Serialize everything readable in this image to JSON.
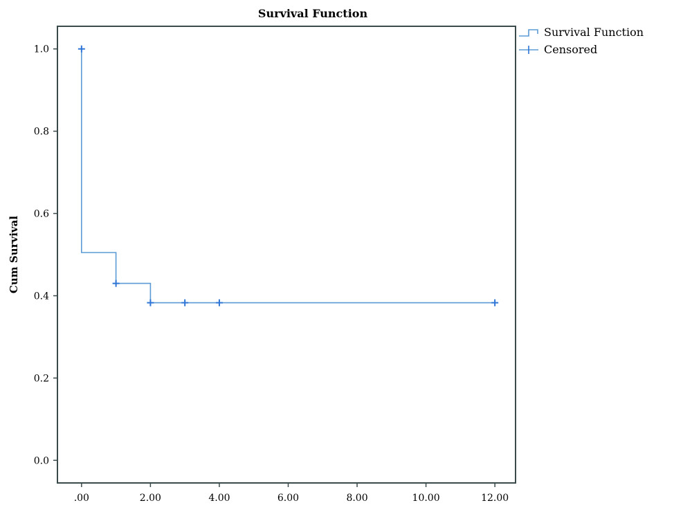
{
  "chart_data": {
    "type": "line",
    "title": "Survival Function",
    "xlabel": "",
    "ylabel": "Cum Survival",
    "xlim": [
      -0.7,
      12.6
    ],
    "ylim": [
      -0.055,
      1.055
    ],
    "x_ticks": [
      {
        "value": 0,
        "label": ".00"
      },
      {
        "value": 2,
        "label": "2.00"
      },
      {
        "value": 4,
        "label": "4.00"
      },
      {
        "value": 6,
        "label": "6.00"
      },
      {
        "value": 8,
        "label": "8.00"
      },
      {
        "value": 10,
        "label": "10.00"
      },
      {
        "value": 12,
        "label": "12.00"
      }
    ],
    "y_ticks": [
      {
        "value": 0.0,
        "label": "0.0"
      },
      {
        "value": 0.2,
        "label": "0.2"
      },
      {
        "value": 0.4,
        "label": "0.4"
      },
      {
        "value": 0.6,
        "label": "0.6"
      },
      {
        "value": 0.8,
        "label": "0.8"
      },
      {
        "value": 1.0,
        "label": "1.0"
      }
    ],
    "grid": false,
    "legend_position": "top-right outside",
    "series": [
      {
        "name": "Survival Function",
        "kind": "step",
        "color": "#5b9bd5",
        "points": [
          {
            "x": 0,
            "y": 1.0
          },
          {
            "x": 0,
            "y": 0.505
          },
          {
            "x": 1,
            "y": 0.505
          },
          {
            "x": 1,
            "y": 0.43
          },
          {
            "x": 2,
            "y": 0.43
          },
          {
            "x": 2,
            "y": 0.383
          },
          {
            "x": 12,
            "y": 0.383
          }
        ]
      },
      {
        "name": "Censored",
        "kind": "markers",
        "marker": "plus",
        "color": "#2e75d6",
        "points": [
          {
            "x": 0,
            "y": 1.0
          },
          {
            "x": 1,
            "y": 0.43
          },
          {
            "x": 2,
            "y": 0.383
          },
          {
            "x": 3,
            "y": 0.383
          },
          {
            "x": 4,
            "y": 0.383
          },
          {
            "x": 12,
            "y": 0.383
          }
        ]
      }
    ]
  },
  "colors": {
    "frame": "#3a4a4a",
    "step_line": "#5b9bd5",
    "censor_marker": "#2e75d6"
  }
}
